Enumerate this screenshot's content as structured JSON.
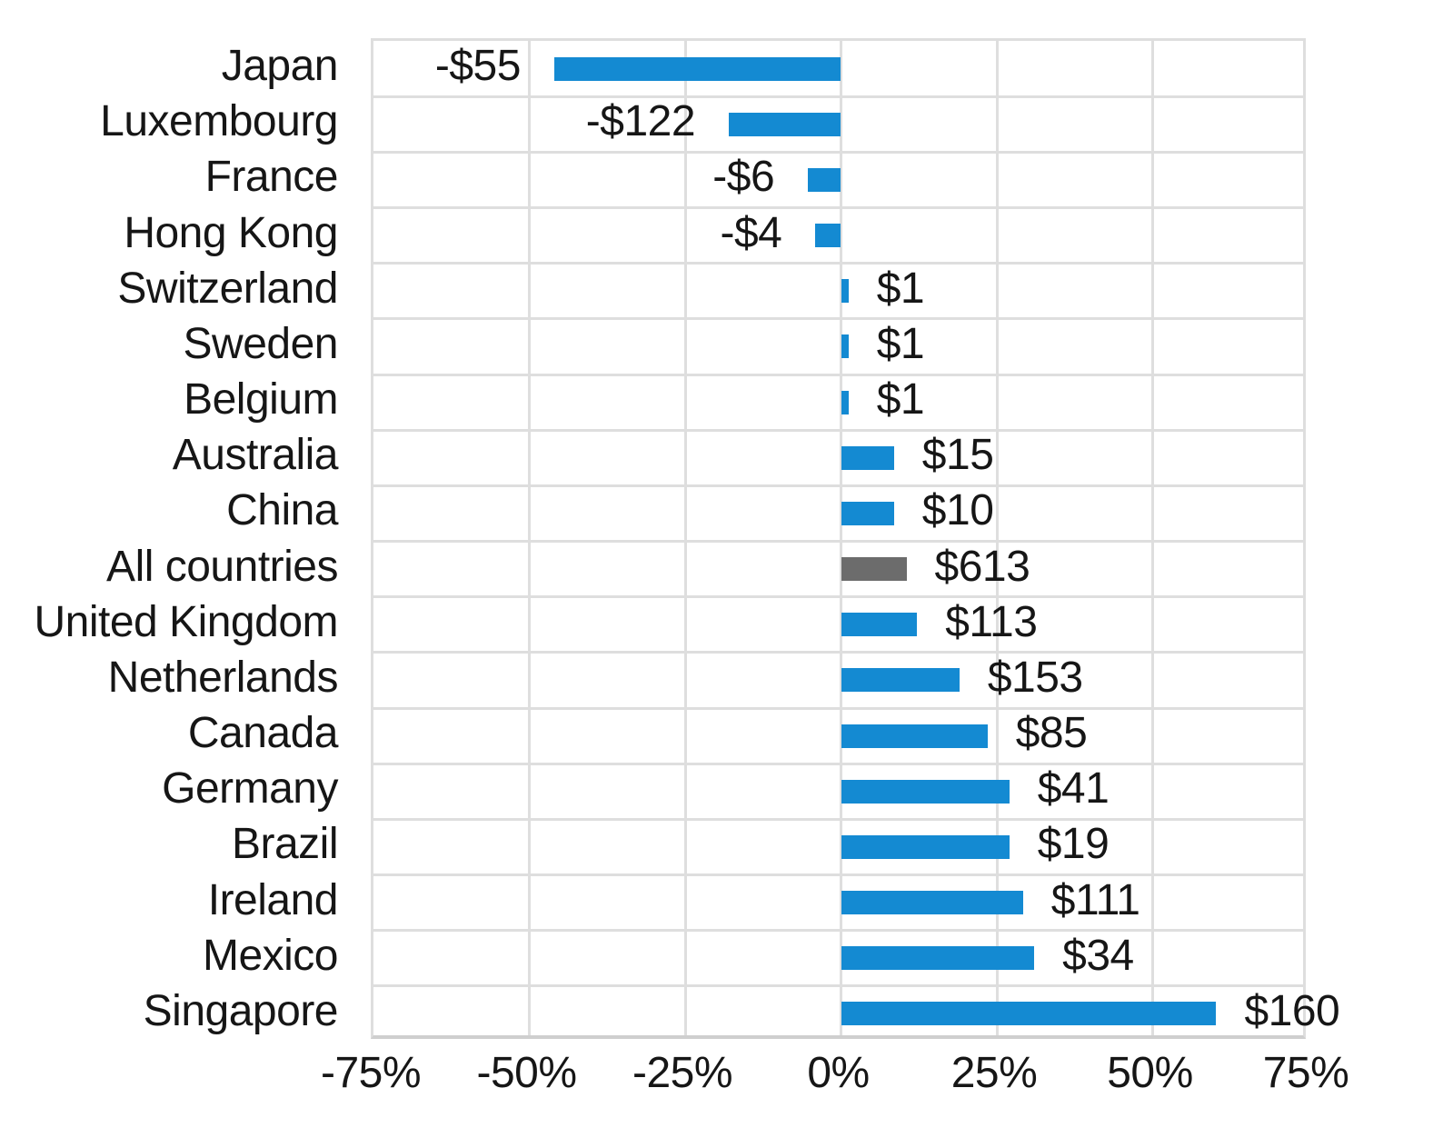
{
  "chart_data": {
    "type": "bar",
    "orientation": "horizontal",
    "title": "",
    "categories": [
      "Japan",
      "Luxembourg",
      "France",
      "Hong Kong",
      "Switzerland",
      "Sweden",
      "Belgium",
      "Australia",
      "China",
      "All countries",
      "United Kingdom",
      "Netherlands",
      "Canada",
      "Germany",
      "Brazil",
      "Ireland",
      "Mexico",
      "Singapore"
    ],
    "series": [
      {
        "name": "percent_change",
        "values": [
          -46,
          -18,
          -5.3,
          -4.1,
          1.2,
          1.2,
          1.2,
          8.5,
          8.5,
          10.5,
          12.2,
          19,
          23.5,
          27,
          27,
          29.2,
          31,
          60.2
        ]
      }
    ],
    "value_labels": [
      "-$55",
      "-$122",
      "-$6",
      "-$4",
      "$1",
      "$1",
      "$1",
      "$15",
      "$10",
      "$613",
      "$113",
      "$153",
      "$85",
      "$41",
      "$19",
      "$111",
      "$34",
      "$160"
    ],
    "x_ticks": [
      {
        "value": -75,
        "label": "-75%"
      },
      {
        "value": -50,
        "label": "-50%"
      },
      {
        "value": -25,
        "label": "-25%"
      },
      {
        "value": 0,
        "label": "0%"
      },
      {
        "value": 25,
        "label": "25%"
      },
      {
        "value": 50,
        "label": "50%"
      },
      {
        "value": 75,
        "label": "75%"
      }
    ],
    "xlim": [
      -75,
      75
    ],
    "grid": true,
    "legend": "none",
    "highlight_category": "All countries",
    "colors": {
      "bar": "#148ad2",
      "highlight_bar": "#6c6c6c",
      "gridline": "#dedede",
      "axis_line": "#cfcfcf",
      "text": "#161616",
      "background": "#ffffff"
    }
  }
}
